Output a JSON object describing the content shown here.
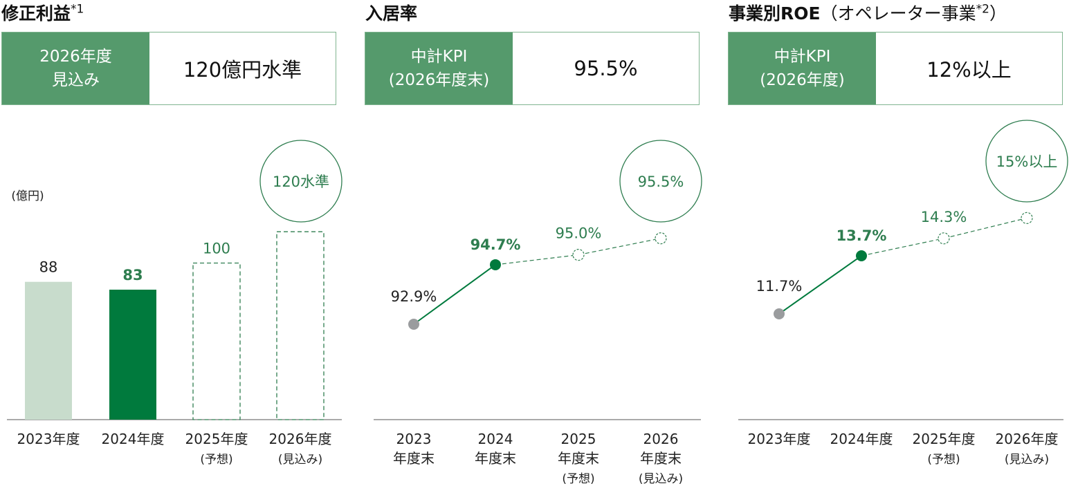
{
  "colors": {
    "header_green": "#559a6c",
    "bar_dark": "#007a3d",
    "bar_light": "#c8dccc",
    "accent_text": "#2e7d4f",
    "gray_point": "#9a9c9e"
  },
  "panels": [
    {
      "title": "修正利益",
      "title_note": "*1",
      "kpi_label": [
        "2026年度",
        "見込み"
      ],
      "kpi_value": "120億円水準"
    },
    {
      "title": "入居率",
      "title_note": "",
      "kpi_label": [
        "中計KPI",
        "(2026年度末)"
      ],
      "kpi_value": "95.5%"
    },
    {
      "title": "事業別ROE",
      "title_paren": "（オペレーター事業",
      "title_note": "*2",
      "title_close": "）",
      "kpi_label": [
        "中計KPI",
        "(2026年度)"
      ],
      "kpi_value": "12%以上"
    }
  ],
  "chart_data": [
    {
      "type": "bar",
      "unit_label": "(億円)",
      "categories": [
        [
          "2023年度"
        ],
        [
          "2024年度"
        ],
        [
          "2025年度",
          "(予想)"
        ],
        [
          "2026年度",
          "(見込み)"
        ]
      ],
      "values": [
        88,
        83,
        100,
        120
      ],
      "data_labels": [
        "88",
        "83",
        "100",
        ""
      ],
      "styles": [
        "actual-light",
        "actual-dark",
        "forecast-dashed",
        "forecast-dashed"
      ],
      "target_label": "120水準",
      "ylim": [
        0,
        130
      ]
    },
    {
      "type": "line",
      "categories": [
        [
          "2023",
          "年度末"
        ],
        [
          "2024",
          "年度末"
        ],
        [
          "2025",
          "年度末",
          "(予想)"
        ],
        [
          "2026",
          "年度末",
          "(見込み)"
        ]
      ],
      "values": [
        92.9,
        94.7,
        95.0,
        95.5
      ],
      "data_labels": [
        "92.9%",
        "94.7%",
        "95.0%",
        ""
      ],
      "styles": [
        "gray",
        "solid",
        "dashed",
        "dashed"
      ],
      "target_label": "95.5%"
    },
    {
      "type": "line",
      "categories": [
        [
          "2023年度"
        ],
        [
          "2024年度"
        ],
        [
          "2025年度",
          "(予想)"
        ],
        [
          "2026年度",
          "(見込み)"
        ]
      ],
      "values": [
        11.7,
        13.7,
        14.3,
        15.0
      ],
      "data_labels": [
        "11.7%",
        "13.7%",
        "14.3%",
        ""
      ],
      "styles": [
        "gray",
        "solid",
        "dashed",
        "dashed"
      ],
      "target_label": "15%以上"
    }
  ]
}
